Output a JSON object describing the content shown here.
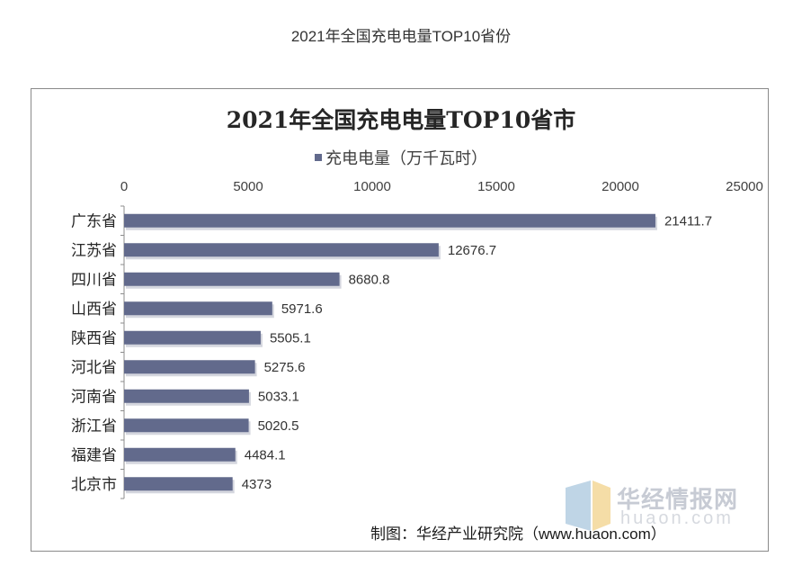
{
  "page_title": "2021年全国充电电量TOP10省份",
  "source": "制图：华经产业研究院（www.huaon.com）",
  "watermark": {
    "text": "华经情报网",
    "sub": "huaon.com"
  },
  "chart_data": {
    "type": "bar",
    "orientation": "horizontal",
    "title": "2021年全国充电电量TOP10省市",
    "categories": [
      "广东省",
      "江苏省",
      "四川省",
      "山西省",
      "陕西省",
      "河北省",
      "河南省",
      "浙江省",
      "福建省",
      "北京市"
    ],
    "series": [
      {
        "name": "充电电量（万千瓦时）",
        "values": [
          21411.7,
          12676.7,
          8680.8,
          5971.6,
          5505.1,
          5275.6,
          5033.1,
          5020.5,
          4484.1,
          4373
        ],
        "labels": [
          "21411.7",
          "12676.7",
          "8680.8",
          "5971.6",
          "5505.1",
          "5275.6",
          "5033.1",
          "5020.5",
          "4484.1",
          "4373"
        ]
      }
    ],
    "xlim": [
      0,
      25000
    ],
    "xticks": [
      "0",
      "5000",
      "10000",
      "15000",
      "20000",
      "25000"
    ],
    "axis_position": "top",
    "grid": false,
    "legend_position": "top-center",
    "bar_color": "#626a8c"
  }
}
